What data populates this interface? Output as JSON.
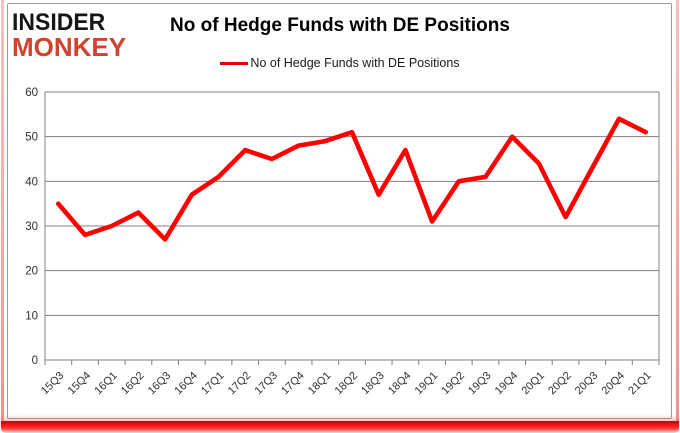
{
  "logo": {
    "line1": "INSIDER",
    "line2": "MONKEY"
  },
  "title": "No of Hedge Funds with DE Positions",
  "legend": {
    "label": "No of Hedge Funds with DE Positions",
    "color": "#dd0000"
  },
  "colors": {
    "series_red": "#fe0000",
    "gridline": "#808080",
    "axis_text": "#303030",
    "logo_red": "#d0442f",
    "border_gray": "#9b9b9b"
  },
  "chart_data": {
    "type": "line",
    "title": "No of Hedge Funds with DE Positions",
    "categories": [
      "15Q3",
      "15Q4",
      "16Q1",
      "16Q2",
      "16Q3",
      "16Q4",
      "17Q1",
      "17Q2",
      "17Q3",
      "17Q4",
      "18Q1",
      "18Q2",
      "18Q3",
      "18Q4",
      "19Q1",
      "19Q2",
      "19Q3",
      "19Q4",
      "20Q1",
      "20Q2",
      "20Q3",
      "20Q4",
      "21Q1"
    ],
    "series": [
      {
        "name": "No of Hedge Funds with DE Positions",
        "color": "#fe0000",
        "values": [
          35,
          28,
          30,
          33,
          27,
          37,
          41,
          47,
          45,
          48,
          49,
          51,
          37,
          47,
          31,
          40,
          41,
          50,
          44,
          32,
          43,
          54,
          51
        ]
      }
    ],
    "xlabel": "",
    "ylabel": "",
    "ylim": [
      0,
      60
    ],
    "yticks": [
      0,
      10,
      20,
      30,
      40,
      50,
      60
    ],
    "grid": true,
    "legend_position": "top"
  }
}
